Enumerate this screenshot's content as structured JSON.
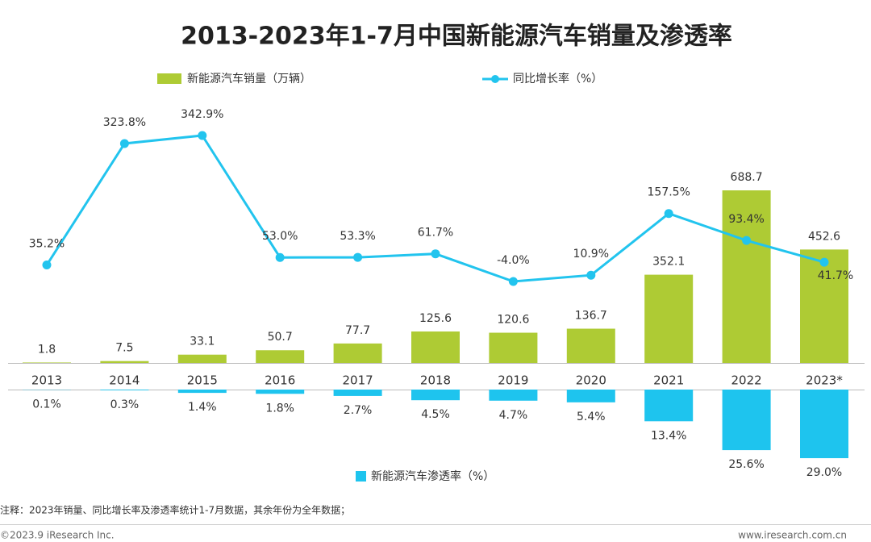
{
  "chart_data": {
    "type": "bar-line",
    "title": "2013-2023年1-7月中国新能源汽车销量及渗透率",
    "categories": [
      "2013",
      "2014",
      "2015",
      "2016",
      "2017",
      "2018",
      "2019",
      "2020",
      "2021",
      "2022",
      "2023*"
    ],
    "series": [
      {
        "name": "新能源汽车销量（万辆）",
        "type": "bar",
        "color": "#aecb34",
        "values": [
          1.8,
          7.5,
          33.1,
          50.7,
          77.7,
          125.6,
          120.6,
          136.7,
          352.1,
          688.7,
          452.6
        ]
      },
      {
        "name": "同比增长率（%）",
        "type": "line",
        "axis": "y2",
        "color": "#22c4ee",
        "values": [
          35.2,
          323.8,
          342.9,
          53.0,
          53.3,
          61.7,
          -4.0,
          10.9,
          157.5,
          93.4,
          41.7
        ],
        "value_labels": [
          "35.2%",
          "323.8%",
          "342.9%",
          "53.0%",
          "53.3%",
          "61.7%",
          "-4.0%",
          "10.9%",
          "157.5%",
          "93.4%",
          "41.7%"
        ]
      },
      {
        "name": "新能源汽车渗透率（%）",
        "type": "bar",
        "axis": "y3",
        "color": "#1ec4ee",
        "values": [
          0.1,
          0.3,
          1.4,
          1.8,
          2.7,
          4.5,
          4.7,
          5.4,
          13.4,
          25.6,
          29.0
        ],
        "value_labels": [
          "0.1%",
          "0.3%",
          "1.4%",
          "1.8%",
          "2.7%",
          "4.5%",
          "4.7%",
          "5.4%",
          "13.4%",
          "25.6%",
          "29.0%"
        ]
      }
    ],
    "ylim": [
      0,
      700
    ],
    "y2lim": [
      -10,
      400
    ],
    "y3lim": [
      0,
      30
    ]
  },
  "footer": {
    "note": "注释：2023年销量、同比增长率及渗透率统计1-7月数据，其余年份为全年数据；",
    "copyright": "©2023.9 iResearch Inc.",
    "website": "www.iresearch.com.cn"
  }
}
